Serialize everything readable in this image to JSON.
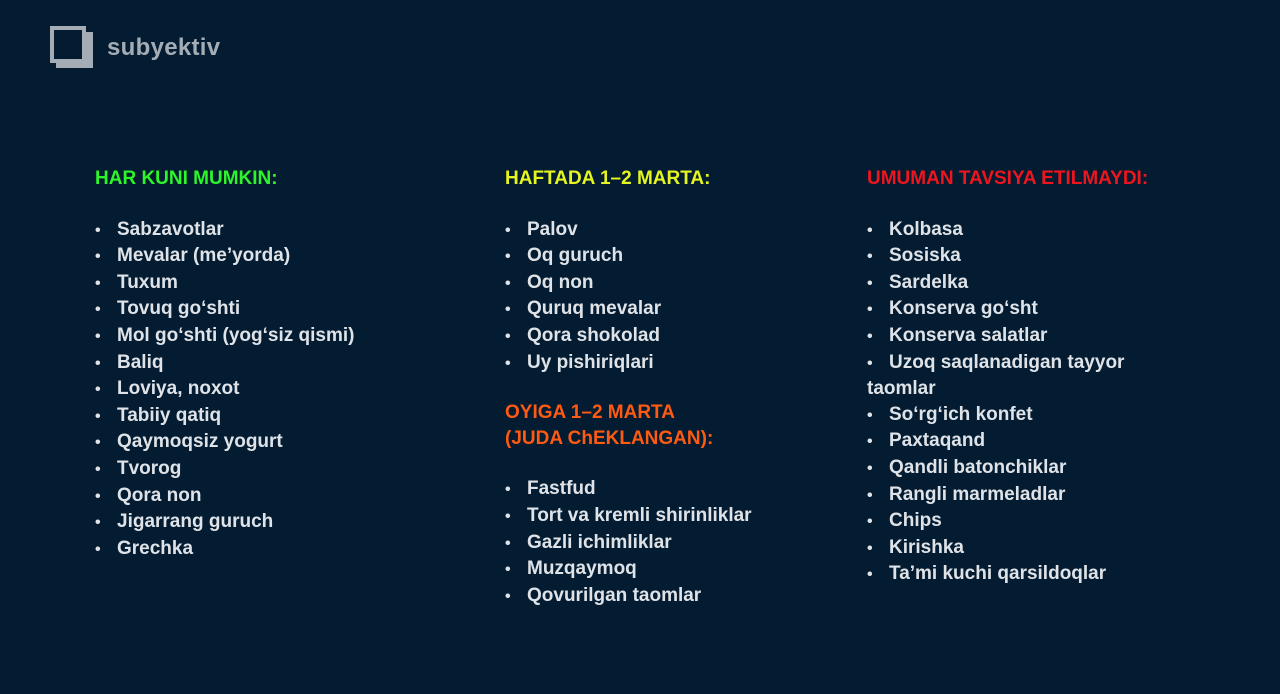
{
  "brand": {
    "name": "subyektiv"
  },
  "colors": {
    "background": "#031c31",
    "green": "#2ef52a",
    "yellow": "#e6f51f",
    "orange": "#ff5a12",
    "red": "#f0141e",
    "text": "#dfe3e8"
  },
  "columns": [
    {
      "heading": "HAR KUNI MUMKIN:",
      "items": [
        "Sabzavotlar",
        "Mevalar (me’yorda)",
        "Tuxum",
        "Tovuq go‘shti",
        "Mol go‘shti (yog‘siz qismi)",
        "Baliq",
        "Loviya, noxot",
        "Tabiiy qatiq",
        "Qaymoqsiz yogurt",
        "Tvorog",
        "Qora non",
        "Jigarrang guruch",
        "Grechka"
      ]
    },
    {
      "heading": "HAFTADA 1–2 MARTA:",
      "items": [
        "Palov",
        "Oq guruch",
        "Oq non",
        "Quruq mevalar",
        "Qora shokolad",
        "Uy pishiriqlari"
      ],
      "heading2_line1": "OYIGA 1–2 MARTA",
      "heading2_line2": "(JUDA ChEKLANGAN):",
      "items2": [
        "Fastfud",
        "Tort va kremli shirinliklar",
        "Gazli ichimliklar",
        "Muzqaymoq",
        "Qovurilgan taomlar"
      ]
    },
    {
      "heading": "UMUMAN TAVSIYA ETILMAYDI:",
      "items": [
        "Kolbasa",
        "Sosiska",
        "Sardelka",
        "Konserva go‘sht",
        "Konserva salatlar",
        "Uzoq saqlanadigan tayyor taomlar",
        "So‘rg‘ich konfet",
        "Paxtaqand",
        "Qandli batonchiklar",
        "Rangli marmeladlar",
        "Chips",
        "Kirishka",
        "Ta’mi kuchi qarsildoqlar"
      ]
    }
  ],
  "bullet": "•"
}
